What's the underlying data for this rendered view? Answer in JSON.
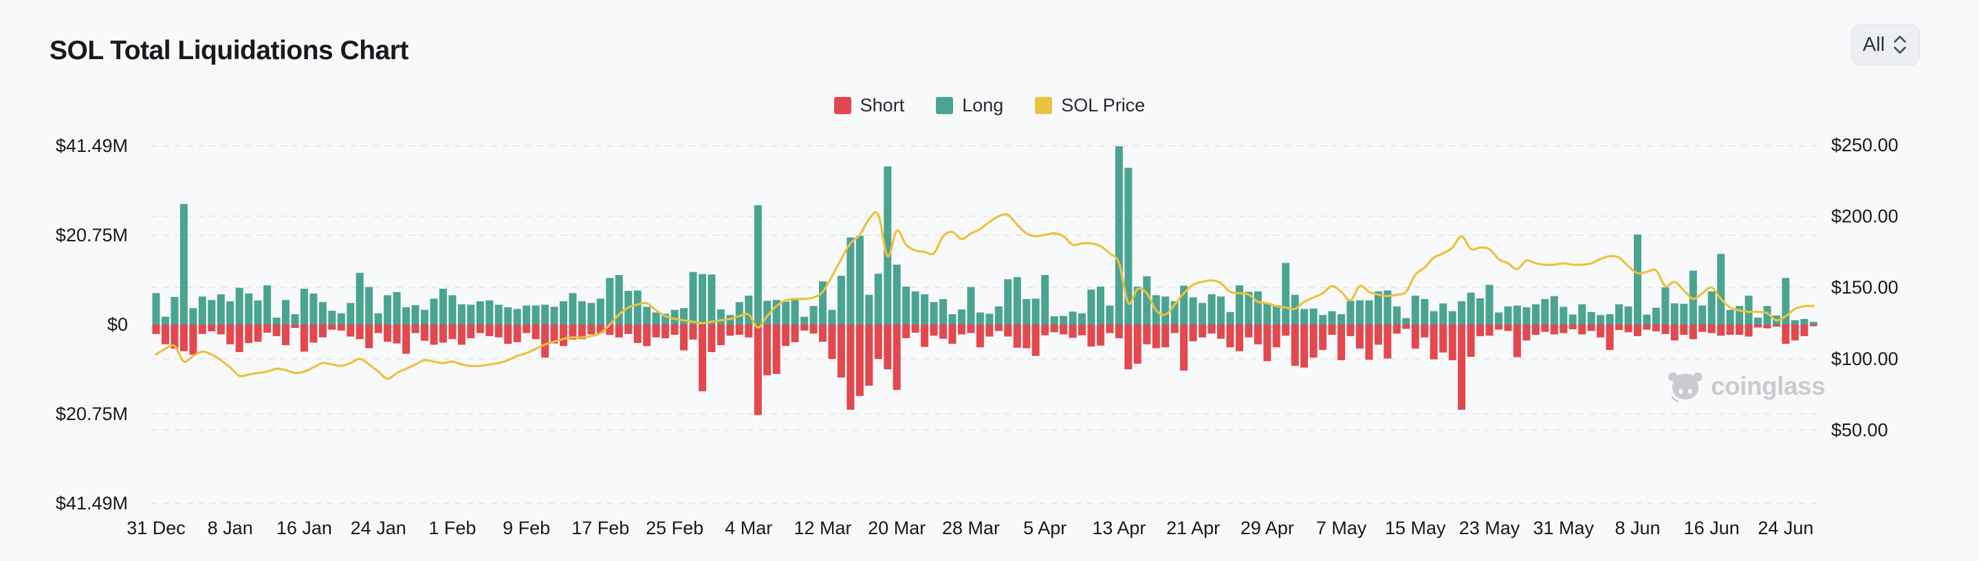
{
  "header": {
    "title": "SOL Total Liquidations Chart",
    "range_selector": {
      "value": "All"
    }
  },
  "legend": [
    {
      "label": "Short",
      "color": "#E2484E"
    },
    {
      "label": "Long",
      "color": "#4AA491"
    },
    {
      "label": "SOL Price",
      "color": "#EAC23F"
    }
  ],
  "watermark": {
    "text": "coinglass"
  },
  "colors": {
    "background": "#f8f9fa",
    "grid": "#e5e6e8",
    "axis_text": "#17191d",
    "short": "#E2484E",
    "long": "#4AA491",
    "price": "#EAC23F",
    "watermark": "#c9cbce"
  },
  "chart_data": {
    "type": "bar",
    "title": "SOL Total Liquidations Chart",
    "legend_position": "top-center",
    "grid": "horizontal-dashed",
    "n_points": 180,
    "days_per_tick": 8,
    "x_tick_labels": [
      "31 Dec",
      "8 Jan",
      "16 Jan",
      "24 Jan",
      "1 Feb",
      "9 Feb",
      "17 Feb",
      "25 Feb",
      "4 Mar",
      "12 Mar",
      "20 Mar",
      "28 Mar",
      "5 Apr",
      "13 Apr",
      "21 Apr",
      "29 Apr",
      "7 May",
      "15 May",
      "23 May",
      "31 May",
      "8 Jun",
      "16 Jun",
      "24 Jun"
    ],
    "left_axis": {
      "tick_labels": [
        "$41.49M",
        "$20.75M",
        "$0",
        "$20.75M",
        "$41.49M"
      ],
      "tick_values": [
        41.49,
        20.75,
        0,
        -20.75,
        -41.49
      ],
      "unit": "million USD",
      "ylim": [
        -41.49,
        41.49
      ]
    },
    "right_axis": {
      "tick_labels": [
        "$250.00",
        "$200.00",
        "$150.00",
        "$100.00",
        "$50.00"
      ],
      "tick_values": [
        250,
        200,
        150,
        100,
        50
      ],
      "unit": "USD",
      "ylim": [
        31,
        259
      ]
    },
    "series": [
      {
        "name": "Long",
        "type": "bar",
        "direction": "up",
        "axis": "left",
        "color": "#4AA491",
        "values": [
          7.3,
          1.8,
          6.4,
          28,
          3.8,
          6.5,
          5.7,
          7,
          5.4,
          8.5,
          7.2,
          5.6,
          9.1,
          1.6,
          5.7,
          2.4,
          8.3,
          7.2,
          5.2,
          3.2,
          2.6,
          5,
          12,
          8.7,
          2.6,
          6.8,
          7.5,
          4,
          4.5,
          3.4,
          6,
          8.3,
          6.8,
          4.7,
          4.6,
          5.4,
          5.6,
          4.6,
          4,
          3.6,
          4.4,
          4.4,
          4.6,
          4.1,
          5.4,
          7.3,
          5.4,
          5,
          6,
          10.8,
          11.5,
          7.8,
          7.9,
          4.1,
          2.8,
          2.5,
          3.4,
          3.8,
          12.2,
          11.7,
          11.6,
          3.5,
          2.2,
          5.2,
          6.7,
          27.7,
          5.5,
          5.7,
          5.3,
          5.9,
          1.8,
          4.3,
          10,
          3.4,
          11.3,
          20.2,
          20.6,
          6.9,
          11.8,
          36.7,
          13.9,
          8.8,
          7.7,
          7,
          5.2,
          5.9,
          2.4,
          3.5,
          8.7,
          2.8,
          2.5,
          4.2,
          10.5,
          11,
          5.9,
          6,
          11.5,
          1.9,
          2,
          3,
          2.6,
          8.1,
          8.8,
          4.4,
          41.4,
          36.4,
          8.8,
          11.2,
          6.8,
          6.5,
          5.4,
          9,
          6.3,
          5,
          7,
          6.5,
          2.9,
          9.1,
          7.6,
          7.7,
          5,
          4.5,
          14.3,
          6.9,
          3.6,
          3.7,
          2.2,
          3.1,
          2.4,
          5.5,
          5.6,
          5.6,
          7.7,
          7.9,
          4.2,
          1.5,
          6.7,
          5.9,
          3.1,
          4.9,
          3.1,
          5.4,
          7.4,
          6.1,
          9.2,
          2.8,
          4.2,
          4.4,
          4,
          4.7,
          5.9,
          6.6,
          4.1,
          2.3,
          4.7,
          2.9,
          2.2,
          2.4,
          4.7,
          4.2,
          20.9,
          2.3,
          3.9,
          8.6,
          4.9,
          4.8,
          12.5,
          4.4,
          7.7,
          16.4,
          3.4,
          4.3,
          6.7,
          1.6,
          4.3,
          2.1,
          10.8,
          1,
          1.3,
          0.6
        ]
      },
      {
        "name": "Short",
        "type": "bar",
        "direction": "down",
        "axis": "left",
        "color": "#E2484E",
        "values": [
          2.2,
          4.6,
          5.6,
          6.2,
          7,
          2.2,
          1.6,
          2.3,
          4.6,
          6.4,
          4.3,
          4,
          1.9,
          2.7,
          4.8,
          0.8,
          6.3,
          4.2,
          3,
          1.2,
          1.4,
          2.8,
          3.4,
          5.5,
          2,
          4,
          4.4,
          6.8,
          2,
          3.8,
          4.7,
          4.2,
          3.4,
          4.7,
          3.2,
          2,
          2.7,
          3,
          4.5,
          4.1,
          2,
          3.4,
          7.7,
          4.4,
          5,
          3.5,
          3.4,
          2.3,
          2,
          2.4,
          3,
          2.2,
          4.3,
          5,
          3,
          3.2,
          2.4,
          6,
          3.5,
          15.5,
          6.4,
          4.8,
          2.6,
          2.4,
          3,
          21,
          11.8,
          11.5,
          5,
          4.1,
          1.4,
          2.1,
          4,
          8,
          12.3,
          19.8,
          16.6,
          14.2,
          8,
          10.4,
          15.2,
          3.2,
          1.9,
          5.2,
          2.6,
          3.3,
          4.5,
          2.3,
          2,
          5.3,
          2.8,
          1.5,
          2.8,
          5.4,
          5.5,
          7.3,
          2.5,
          1.8,
          2.3,
          3.1,
          2.5,
          5.1,
          4.9,
          2,
          3.2,
          10.4,
          9.1,
          4.6,
          5.5,
          5.3,
          2,
          10.7,
          3.9,
          3,
          2.1,
          3.3,
          5.3,
          6.2,
          3,
          4.6,
          8.5,
          5.3,
          2.6,
          9.6,
          10,
          7.7,
          5.9,
          2.4,
          8.3,
          2.7,
          5.6,
          8.2,
          4.7,
          7.9,
          2.1,
          1,
          5.6,
          3,
          8.1,
          6.5,
          8.3,
          19.8,
          7.5,
          2.7,
          2.6,
          1.2,
          1.5,
          7.6,
          3.7,
          2.4,
          1.7,
          2.3,
          2,
          1.1,
          2.3,
          1.5,
          3,
          5.9,
          1.3,
          1.8,
          2.7,
          1.2,
          1.6,
          2.2,
          3.7,
          2.4,
          3.4,
          1.7,
          2,
          2.6,
          2.4,
          2.4,
          2.8,
          0.7,
          0.9,
          0.5,
          4.5,
          3.7,
          2.7,
          0.4
        ]
      },
      {
        "name": "SOL Price",
        "type": "line",
        "axis": "right",
        "color": "#EAC23F",
        "values": [
          103,
          107,
          109,
          98,
          102,
          105,
          103,
          99,
          94,
          88,
          89,
          90,
          91,
          93,
          92,
          90,
          91,
          94,
          97,
          96,
          95,
          97,
          100,
          96,
          91,
          86,
          90,
          93,
          96,
          99,
          98,
          97,
          98,
          96,
          95,
          95,
          96,
          97,
          99,
          102,
          104,
          107,
          110,
          112,
          114,
          115,
          115,
          116,
          118,
          124,
          131,
          136,
          138,
          139,
          134,
          130,
          128,
          127,
          126,
          125,
          126,
          127,
          128,
          130,
          131,
          122,
          130,
          137,
          141,
          142,
          142,
          143,
          147,
          158,
          170,
          181,
          187,
          198,
          201,
          172,
          190,
          180,
          176,
          175,
          174,
          186,
          189,
          184,
          188,
          191,
          196,
          200,
          201,
          194,
          188,
          186,
          187,
          188,
          186,
          180,
          181,
          181,
          179,
          174,
          167,
          139,
          149,
          146,
          134,
          131,
          138,
          146,
          152,
          154,
          155,
          153,
          147,
          146,
          145,
          140,
          139,
          137,
          136,
          135,
          140,
          143,
          146,
          151,
          147,
          141,
          151,
          147,
          145,
          144,
          145,
          147,
          159,
          164,
          171,
          174,
          178,
          186,
          177,
          178,
          177,
          170,
          167,
          163,
          169,
          167,
          166,
          166,
          167,
          166,
          166,
          167,
          170,
          172,
          171,
          165,
          160,
          161,
          162,
          151,
          154,
          148,
          142,
          146,
          150,
          142,
          136,
          134,
          133,
          133,
          132,
          127,
          130,
          135,
          137,
          137
        ]
      }
    ]
  }
}
